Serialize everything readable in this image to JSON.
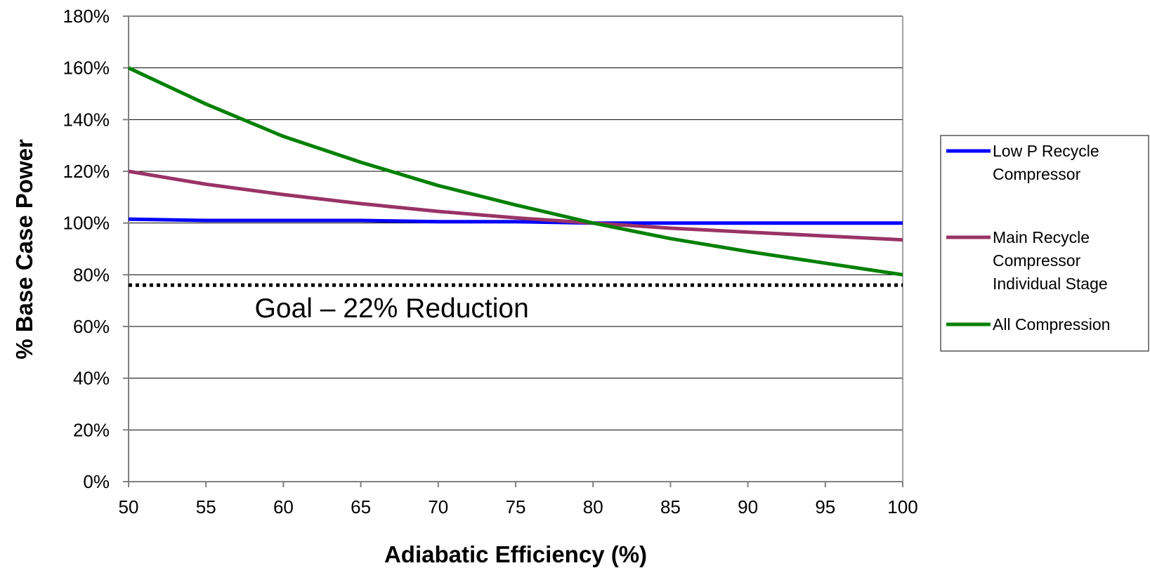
{
  "chart_data": {
    "type": "line",
    "title": "",
    "xlabel": "Adiabatic Efficiency (%)",
    "ylabel": "% Base Case Power",
    "x": [
      50,
      55,
      60,
      65,
      70,
      75,
      80,
      85,
      90,
      95,
      100
    ],
    "xlim": [
      50,
      100
    ],
    "ylim": [
      0,
      180
    ],
    "x_ticks": [
      "50",
      "55",
      "60",
      "65",
      "70",
      "75",
      "80",
      "85",
      "90",
      "95",
      "100"
    ],
    "y_ticks": [
      "0%",
      "20%",
      "40%",
      "60%",
      "80%",
      "100%",
      "120%",
      "140%",
      "160%",
      "180%"
    ],
    "grid": "horizontal",
    "legend_position": "right",
    "series": [
      {
        "name": "Low P Recycle Compressor",
        "legend_lines": [
          "Low P Recycle",
          "Compressor"
        ],
        "color": "#0000FF",
        "values": [
          101.5,
          101,
          101,
          101,
          100.5,
          100.5,
          100,
          100,
          100,
          100,
          100
        ]
      },
      {
        "name": "Main Recycle Compressor Individual Stage",
        "legend_lines": [
          "Main Recycle",
          "Compressor",
          "Individual Stage"
        ],
        "color": "#993366",
        "values": [
          120,
          115,
          111,
          107.5,
          104.5,
          102,
          100,
          98,
          96.5,
          95,
          93.5
        ]
      },
      {
        "name": "All Compression",
        "legend_lines": [
          "All Compression"
        ],
        "color": "#008000",
        "values": [
          160,
          146,
          133.5,
          123.5,
          114.5,
          107,
          100,
          94,
          89,
          84.5,
          80
        ]
      }
    ],
    "reference_line": {
      "value": 76,
      "style": "dotted",
      "color": "#000000",
      "label": "Goal – 22% Reduction"
    }
  }
}
